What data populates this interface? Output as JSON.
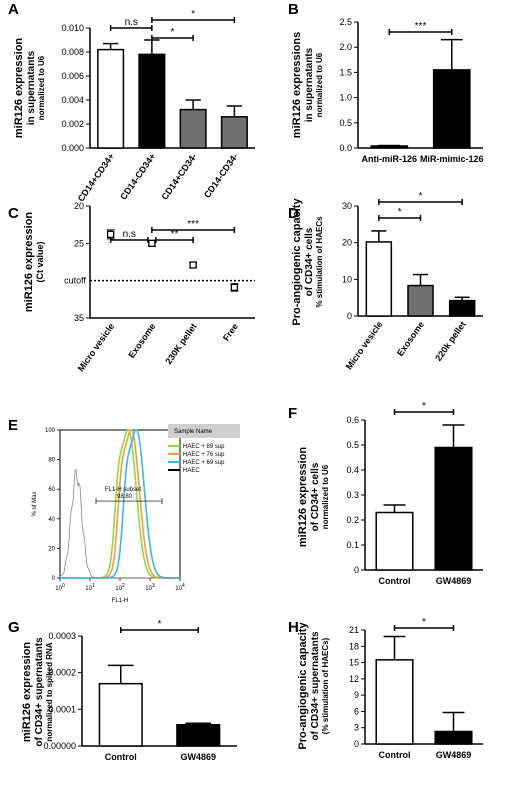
{
  "chart_data": [
    {
      "panel": "A",
      "type": "bar",
      "ylabel_lines": [
        "miR126 expression",
        "in supernatants",
        "normalized to U6"
      ],
      "ylim": [
        0,
        0.01
      ],
      "yticks": [
        0.0,
        0.002,
        0.004,
        0.006,
        0.008,
        0.01
      ],
      "ytick_labels": [
        "0.000",
        "0.002",
        "0.004",
        "0.006",
        "0.008",
        "0.010"
      ],
      "categories": [
        "CD14+CD34+",
        "CD14-CD34+",
        "CD14+CD34-",
        "CD14-CD34-"
      ],
      "values": [
        0.0082,
        0.0078,
        0.0032,
        0.0026
      ],
      "errors": [
        0.0005,
        0.0012,
        0.0008,
        0.0009
      ],
      "bar_colors": [
        "#ffffff",
        "#000000",
        "#707070",
        "#707070"
      ],
      "significance": [
        {
          "from": 0,
          "to": 1,
          "label": "n.s"
        },
        {
          "from": 1,
          "to": 2,
          "label": "*"
        },
        {
          "from": 1,
          "to": 3,
          "label": "*"
        }
      ]
    },
    {
      "panel": "B",
      "type": "bar",
      "ylabel_lines": [
        "miR126 expressions",
        "in supernatants",
        "normalized to U6"
      ],
      "ylim": [
        0,
        2.5
      ],
      "yticks": [
        0.0,
        0.5,
        1.0,
        1.5,
        2.0,
        2.5
      ],
      "ytick_labels": [
        "0.0",
        "0.5",
        "1.0",
        "1.5",
        "2.0",
        "2.5"
      ],
      "categories": [
        "Anti-miR-126",
        "MiR-mimic-126"
      ],
      "values": [
        0.04,
        1.55
      ],
      "errors": [
        0.01,
        0.6
      ],
      "bar_colors": [
        "#000000",
        "#000000"
      ],
      "significance": [
        {
          "from": 0,
          "to": 1,
          "label": "***"
        }
      ]
    },
    {
      "panel": "C",
      "type": "scatter",
      "ylabel_lines": [
        "miR126 expression",
        "(Ct value)"
      ],
      "ylim": [
        20,
        35
      ],
      "inverted": true,
      "yticks": [
        20,
        25,
        35
      ],
      "ytick_labels": [
        "20",
        "25",
        "35"
      ],
      "cutoff_value": 30,
      "cutoff_label": "cutoff",
      "categories": [
        "Micro vesicle",
        "Exosome",
        "230K pellet",
        "Free"
      ],
      "values": [
        23.8,
        25.0,
        27.9,
        30.9
      ],
      "errors": [
        0.6,
        0.4,
        0.3,
        0.5
      ],
      "significance": [
        {
          "from": 0,
          "to": 1,
          "label": "n.s"
        },
        {
          "from": 1,
          "to": 2,
          "label": "**"
        },
        {
          "from": 1,
          "to": 3,
          "label": "***"
        }
      ]
    },
    {
      "panel": "D",
      "type": "bar",
      "ylabel_lines": [
        "Pro-angiogenic capacity",
        "of CD34+ cells",
        "% stimulation of HAECs"
      ],
      "ylim": [
        0,
        30
      ],
      "yticks": [
        0,
        10,
        20,
        30
      ],
      "ytick_labels": [
        "0",
        "10",
        "20",
        "30"
      ],
      "categories": [
        "Micro vesicle",
        "Exosome",
        "220k pellet"
      ],
      "values": [
        20.2,
        8.3,
        4.2
      ],
      "errors": [
        3.0,
        3.0,
        0.9
      ],
      "bar_colors": [
        "#ffffff",
        "#707070",
        "#000000"
      ],
      "significance": [
        {
          "from": 0,
          "to": 1,
          "label": "*"
        },
        {
          "from": 0,
          "to": 2,
          "label": "*"
        }
      ]
    },
    {
      "panel": "E",
      "type": "histogram",
      "legend_title": "Sample Name",
      "series": [
        {
          "name": "HAEC + 89 sup",
          "color": "#88dd44",
          "peak_log": 2.28
        },
        {
          "name": "HAEC + 76 sup",
          "color": "#ff9933",
          "peak_log": 2.38
        },
        {
          "name": "HAEC + 69 sup",
          "color": "#33bbee",
          "peak_log": 2.55
        },
        {
          "name": "HAEC",
          "color": "#000000",
          "peak_log": 0.55
        }
      ],
      "gate_label": "FL1-H subset",
      "gate_value": "98.80",
      "xlabel": "FL1-H",
      "ylabel": "% of Max",
      "xticks": [
        0,
        1,
        2,
        3,
        4
      ],
      "xtick_labels": [
        "10",
        "10",
        "10",
        "10",
        "10"
      ],
      "xtick_exps": [
        "0",
        "1",
        "2",
        "3",
        "4"
      ],
      "yticks": [
        0,
        20,
        40,
        60,
        80,
        100
      ],
      "ytick_labels": [
        "0",
        "20",
        "40",
        "60",
        "80",
        "100"
      ]
    },
    {
      "panel": "F",
      "type": "bar",
      "ylabel_lines": [
        "miR126 expression",
        "of CD34+ cells",
        "normalized to U6"
      ],
      "ylim": [
        0,
        0.6
      ],
      "yticks": [
        0.0,
        0.1,
        0.2,
        0.3,
        0.4,
        0.5,
        0.6
      ],
      "ytick_labels": [
        "0",
        "0.1",
        "0.2",
        "0.3",
        "0.4",
        "0.5",
        "0.6"
      ],
      "categories": [
        "Control",
        "GW4869"
      ],
      "values": [
        0.23,
        0.49
      ],
      "errors": [
        0.03,
        0.09
      ],
      "bar_colors": [
        "#ffffff",
        "#000000"
      ],
      "significance": [
        {
          "from": 0,
          "to": 1,
          "label": "*"
        }
      ]
    },
    {
      "panel": "G",
      "type": "bar",
      "ylabel_lines": [
        "miR126 expression",
        "of CD34+ supernatants",
        "normalized to spiked RNA"
      ],
      "ylim": [
        0,
        0.0003
      ],
      "yticks": [
        0.0,
        0.0001,
        0.0002,
        0.0003
      ],
      "ytick_labels": [
        "0.00000",
        "0.0001",
        "0.0002",
        "0.0003"
      ],
      "categories": [
        "Control",
        "GW4869"
      ],
      "values": [
        0.00017,
        5.8e-05
      ],
      "errors": [
        5e-05,
        4e-06
      ],
      "bar_colors": [
        "#ffffff",
        "#000000"
      ],
      "significance": [
        {
          "from": 0,
          "to": 1,
          "label": "*"
        }
      ]
    },
    {
      "panel": "H",
      "type": "bar",
      "ylabel_lines": [
        "Pro-angiogenic capacity",
        "of CD34+ supernatants",
        "(% stimulation of HAECs)"
      ],
      "ylim": [
        0,
        21
      ],
      "yticks": [
        0,
        3,
        6,
        9,
        12,
        15,
        18,
        21
      ],
      "ytick_labels": [
        "0",
        "3",
        "6",
        "9",
        "12",
        "15",
        "18",
        "21"
      ],
      "categories": [
        "Control",
        "GW4869"
      ],
      "values": [
        15.5,
        2.3
      ],
      "errors": [
        4.3,
        3.5
      ],
      "bar_colors": [
        "#ffffff",
        "#000000"
      ],
      "significance": [
        {
          "from": 0,
          "to": 1,
          "label": "*"
        }
      ]
    }
  ]
}
